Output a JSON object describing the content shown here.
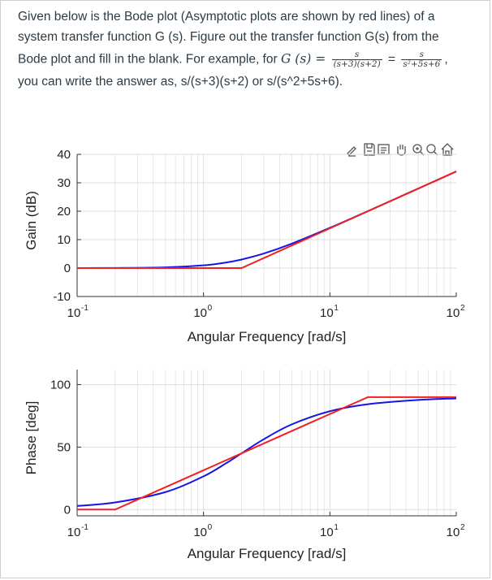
{
  "question": {
    "line1": "Given below is the Bode plot (Asymptotic plots are shown by red lines) of a",
    "line2": "system transfer function G (s). Figure out the transfer function G(s) from the",
    "line3_prefix": "Bode plot and fill in the blank.  For example, for ",
    "line3_math": "G (s) =",
    "frac1_num": "s",
    "frac1_den": "(s+3)(s+2)",
    "eq": "=",
    "frac2_num": "s",
    "frac2_den": "s²+5s+6",
    "line3_suffix": ",",
    "line4": "you can write the answer as, s/(s+3)(s+2) or s/(s^2+5s+6)."
  },
  "toolbar": {
    "icons": [
      "annotate-icon",
      "save-icon",
      "document-icon",
      "pan-icon",
      "zoom-in-icon",
      "zoom-icon",
      "home-icon"
    ]
  },
  "colors": {
    "exact": "#1515e6",
    "asymptote": "#ef2020",
    "grid": "#dddddd"
  },
  "chart_data": [
    {
      "type": "line",
      "name": "magnitude",
      "xscale": "log",
      "xlim": [
        0.1,
        100
      ],
      "ylim": [
        -10,
        40
      ],
      "yticks": [
        -10,
        0,
        10,
        20,
        30,
        40
      ],
      "xticks": [
        {
          "value": 0.1,
          "base": "10",
          "exp": "-1"
        },
        {
          "value": 1,
          "base": "10",
          "exp": "0"
        },
        {
          "value": 10,
          "base": "10",
          "exp": "1"
        },
        {
          "value": 100,
          "base": "10",
          "exp": "2"
        }
      ],
      "ylabel": "Gain (dB)",
      "xlabel": "Angular Frequency [rad/s]",
      "series": [
        {
          "role": "asymptote",
          "x": [
            0.1,
            2,
            100
          ],
          "y": [
            0,
            0,
            33.98
          ]
        },
        {
          "role": "exact",
          "x": [
            0.1,
            0.2,
            0.5,
            1,
            1.5,
            2,
            3,
            5,
            10,
            20,
            50,
            100
          ],
          "y": [
            0.0,
            0.04,
            0.26,
            0.97,
            1.94,
            3.01,
            5.12,
            8.6,
            14.15,
            20.04,
            27.97,
            33.98
          ]
        }
      ]
    },
    {
      "type": "line",
      "name": "phase",
      "xscale": "log",
      "xlim": [
        0.1,
        100
      ],
      "ylim": [
        -5,
        112
      ],
      "yticks": [
        0,
        50,
        100
      ],
      "xticks": [
        {
          "value": 0.1,
          "base": "10",
          "exp": "-1"
        },
        {
          "value": 1,
          "base": "10",
          "exp": "0"
        },
        {
          "value": 10,
          "base": "10",
          "exp": "1"
        },
        {
          "value": 100,
          "base": "10",
          "exp": "2"
        }
      ],
      "ylabel": "Phase [deg]",
      "xlabel": "Angular Frequency [rad/s]",
      "series": [
        {
          "role": "asymptote",
          "x": [
            0.1,
            0.2,
            20,
            100
          ],
          "y": [
            0,
            0,
            90,
            90
          ]
        },
        {
          "role": "exact",
          "x": [
            0.1,
            0.2,
            0.5,
            1,
            1.5,
            2,
            3,
            5,
            10,
            20,
            50,
            100
          ],
          "y": [
            2.9,
            5.7,
            14.0,
            26.6,
            36.9,
            45.0,
            56.3,
            68.2,
            78.7,
            84.3,
            87.7,
            88.9
          ]
        }
      ]
    }
  ]
}
